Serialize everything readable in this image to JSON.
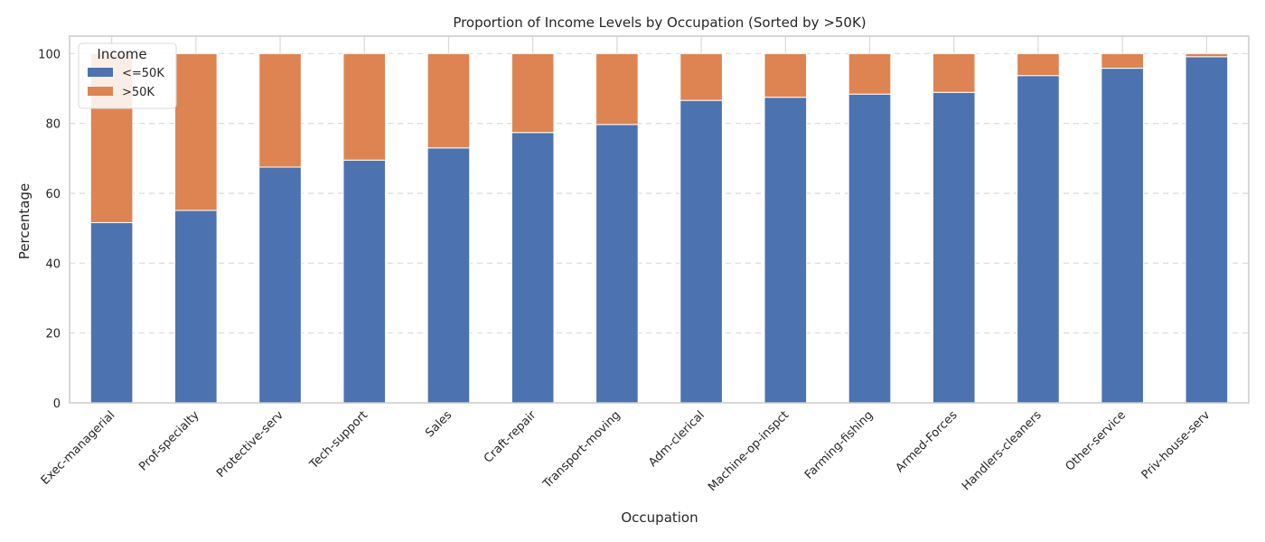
{
  "chart_data": {
    "type": "bar",
    "stacked": true,
    "title": "Proportion of Income Levels by Occupation (Sorted by >50K)",
    "xlabel": "Occupation",
    "ylabel": "Percentage",
    "ylim": [
      0,
      105
    ],
    "yticks": [
      0,
      20,
      40,
      60,
      80,
      100
    ],
    "grid": true,
    "legend": {
      "title": "Income",
      "placement": "top-left"
    },
    "categories": [
      "Exec-managerial",
      "Prof-specialty",
      "Protective-serv",
      "Tech-support",
      "Sales",
      "Craft-repair",
      "Transport-moving",
      "Adm-clerical",
      "Machine-op-inspct",
      "Farming-fishing",
      "Armed-Forces",
      "Handlers-cleaners",
      "Other-service",
      "Priv-house-serv"
    ],
    "series": [
      {
        "name": "<=50K",
        "color": "#4c72b0",
        "values": [
          51.6,
          55.1,
          67.5,
          69.5,
          73.0,
          77.4,
          79.7,
          86.6,
          87.5,
          88.4,
          88.9,
          93.7,
          95.8,
          99.1
        ]
      },
      {
        "name": ">50K",
        "color": "#dd8452",
        "values": [
          48.4,
          44.9,
          32.5,
          30.5,
          27.0,
          22.6,
          20.3,
          13.4,
          12.5,
          11.6,
          11.1,
          6.3,
          4.2,
          0.9
        ]
      }
    ]
  }
}
